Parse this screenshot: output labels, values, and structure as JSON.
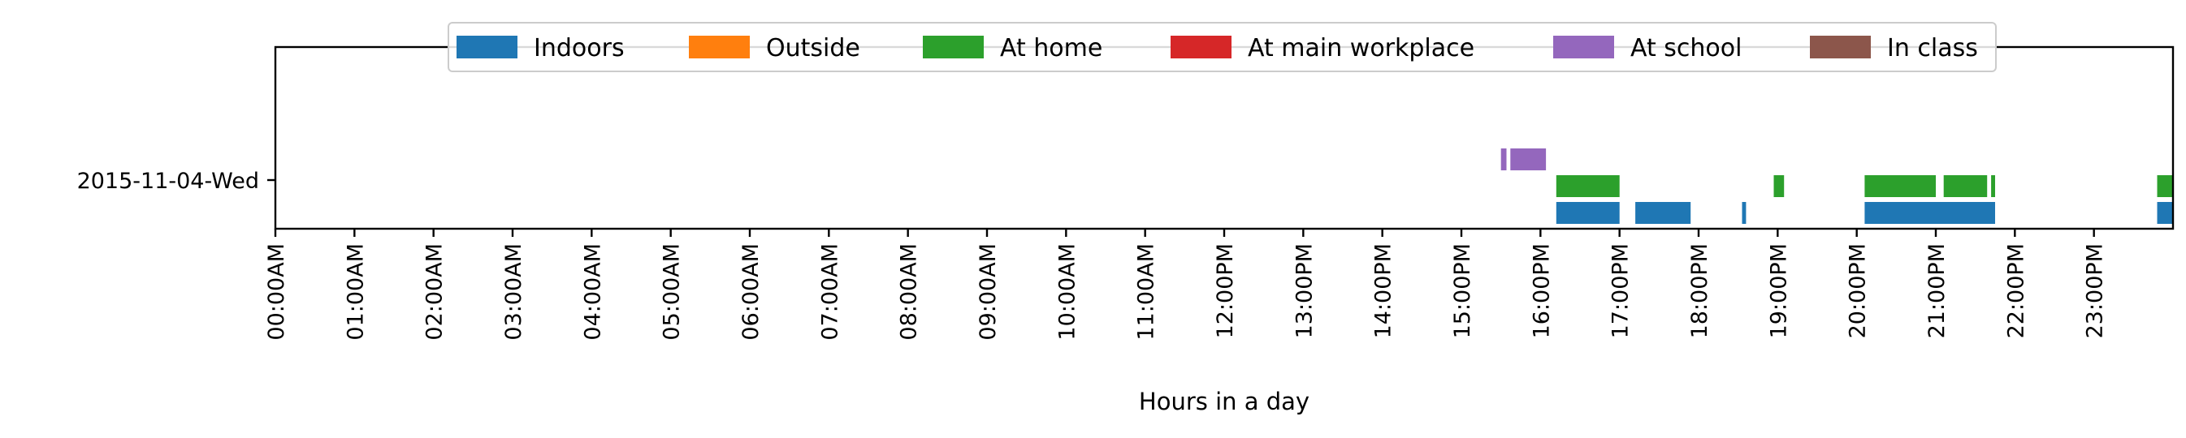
{
  "chart_data": {
    "type": "timeline",
    "xlabel": "Hours in a day",
    "ylabel": "",
    "x_ticks": [
      "00:00AM",
      "01:00AM",
      "02:00AM",
      "03:00AM",
      "04:00AM",
      "05:00AM",
      "06:00AM",
      "07:00AM",
      "08:00AM",
      "09:00AM",
      "10:00AM",
      "11:00AM",
      "12:00PM",
      "13:00PM",
      "14:00PM",
      "15:00PM",
      "16:00PM",
      "17:00PM",
      "18:00PM",
      "19:00PM",
      "20:00PM",
      "21:00PM",
      "22:00PM",
      "23:00PM"
    ],
    "xlim": [
      0,
      24
    ],
    "y_categories": [
      "2015-11-04-Wed"
    ],
    "legend_position": "top-center",
    "series": [
      {
        "name": "Indoors",
        "color": "#1f77b4",
        "intervals": [
          [
            16.2,
            17.0
          ],
          [
            17.2,
            17.9
          ],
          [
            18.55,
            18.6
          ],
          [
            20.1,
            21.75
          ],
          [
            23.8,
            24.0
          ]
        ]
      },
      {
        "name": "Outside",
        "color": "#ff7f0e",
        "intervals": []
      },
      {
        "name": "At home",
        "color": "#2ca02c",
        "intervals": [
          [
            16.2,
            17.0
          ],
          [
            18.95,
            19.08
          ],
          [
            20.1,
            21.0
          ],
          [
            21.1,
            21.65
          ],
          [
            21.7,
            21.75
          ],
          [
            23.8,
            24.0
          ]
        ]
      },
      {
        "name": "At main workplace",
        "color": "#d62728",
        "intervals": []
      },
      {
        "name": "At school",
        "color": "#9467bd",
        "intervals": [
          [
            15.5,
            15.57
          ],
          [
            15.62,
            16.07
          ]
        ]
      },
      {
        "name": "In class",
        "color": "#8c564b",
        "intervals": []
      }
    ]
  }
}
